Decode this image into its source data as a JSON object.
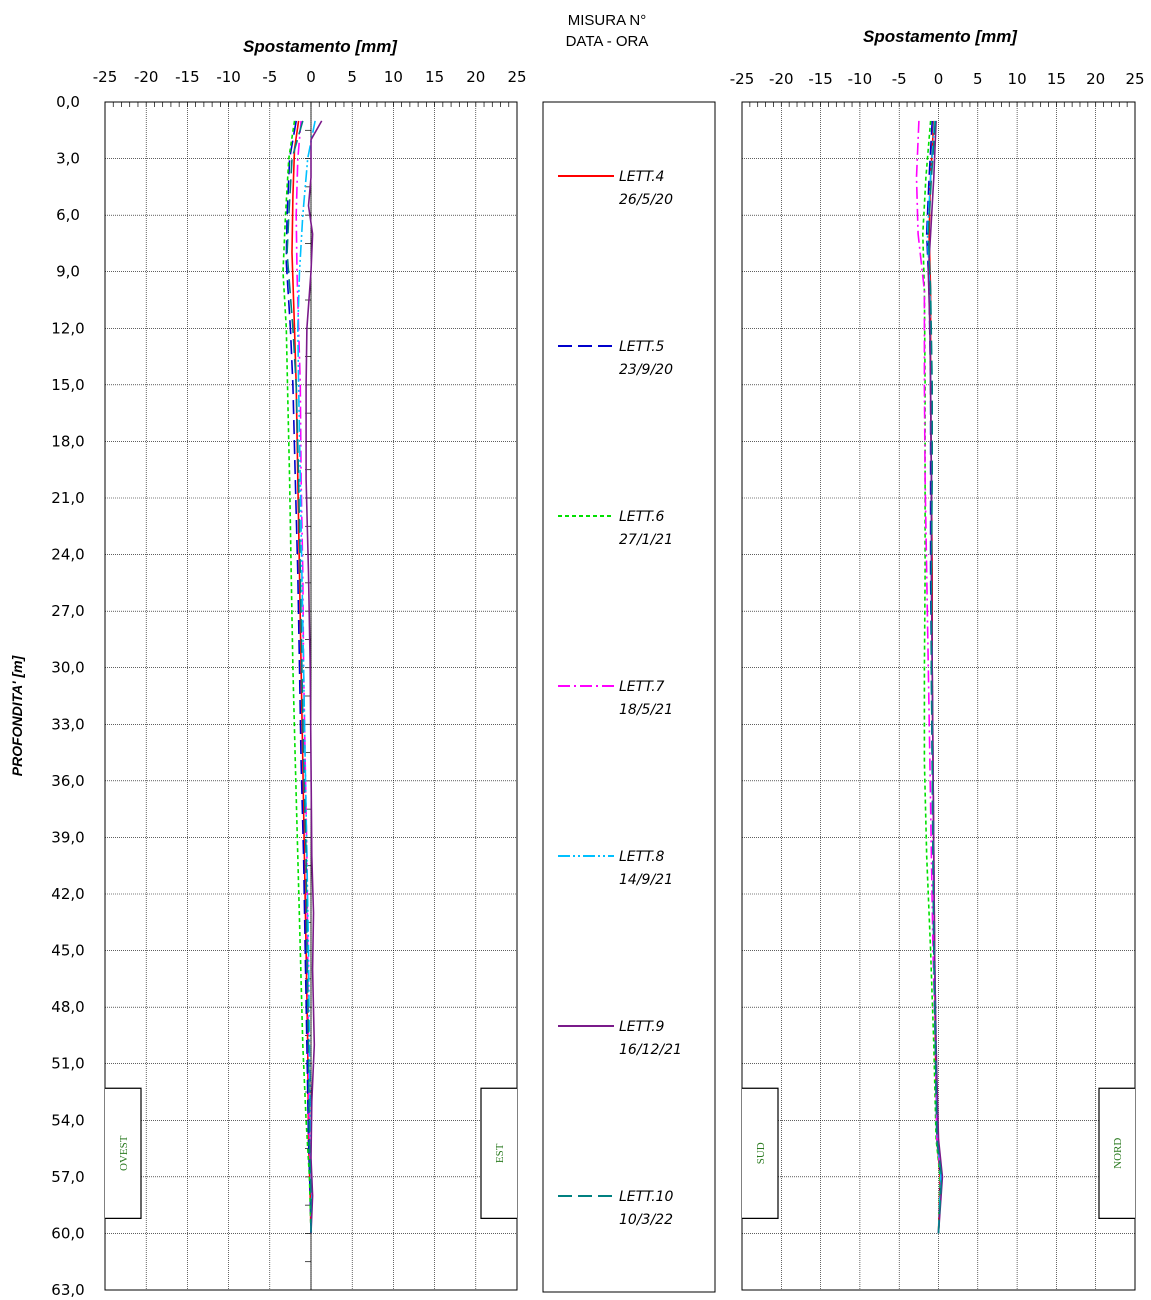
{
  "chart_data": [
    {
      "type": "line",
      "panel": "ovest-est",
      "title": "Spostamento [mm]",
      "xlabel": "Spostamento [mm]",
      "ylabel": "PROFONDITA' [m]",
      "xlim": [
        -25,
        25
      ],
      "ylim": [
        0,
        63
      ],
      "y_inverted": true,
      "x_ticks": [
        "-25",
        "-20",
        "-15",
        "-10",
        "-5",
        "0",
        "5",
        "10",
        "15",
        "20",
        "25"
      ],
      "y_ticks": [
        "0,0",
        "3,0",
        "6,0",
        "9,0",
        "12,0",
        "15,0",
        "18,0",
        "21,0",
        "24,0",
        "27,0",
        "30,0",
        "33,0",
        "36,0",
        "39,0",
        "42,0",
        "45,0",
        "48,0",
        "51,0",
        "54,0",
        "57,0",
        "60,0",
        "63,0"
      ],
      "direction_left": "OVEST",
      "direction_right": "EST",
      "grid": true,
      "series": [
        {
          "name": "LETT.4",
          "color": "#ff0000",
          "dash": "solid",
          "points": [
            [
              -1.5,
              1.0
            ],
            [
              -2.0,
              2.5
            ],
            [
              -2.2,
              5.0
            ],
            [
              -2.3,
              8.0
            ],
            [
              -2.0,
              12.0
            ],
            [
              -1.8,
              15.0
            ],
            [
              -1.6,
              20.0
            ],
            [
              -1.4,
              25.0
            ],
            [
              -1.2,
              30.0
            ],
            [
              -1.0,
              35.0
            ],
            [
              -0.8,
              40.0
            ],
            [
              -0.6,
              45.0
            ],
            [
              -0.4,
              50.0
            ],
            [
              -0.3,
              55.0
            ],
            [
              -0.1,
              58.0
            ],
            [
              0.0,
              60.0
            ]
          ]
        },
        {
          "name": "LETT.5",
          "color": "#0000cc",
          "dash": "long-dash",
          "points": [
            [
              -1.8,
              1.0
            ],
            [
              -2.6,
              3.0
            ],
            [
              -2.9,
              6.0
            ],
            [
              -3.0,
              8.5
            ],
            [
              -2.5,
              12.0
            ],
            [
              -2.2,
              15.0
            ],
            [
              -1.9,
              20.0
            ],
            [
              -1.6,
              25.0
            ],
            [
              -1.4,
              30.0
            ],
            [
              -1.2,
              35.0
            ],
            [
              -0.9,
              40.0
            ],
            [
              -0.7,
              45.0
            ],
            [
              -0.5,
              50.0
            ],
            [
              -0.3,
              55.0
            ],
            [
              -0.1,
              58.0
            ],
            [
              0.0,
              60.0
            ]
          ]
        },
        {
          "name": "LETT.6",
          "color": "#00e000",
          "dash": "short-dash",
          "points": [
            [
              -2.0,
              1.0
            ],
            [
              -2.7,
              3.0
            ],
            [
              -3.1,
              6.0
            ],
            [
              -3.4,
              9.0
            ],
            [
              -3.0,
              12.0
            ],
            [
              -2.8,
              16.0
            ],
            [
              -2.6,
              20.0
            ],
            [
              -2.4,
              25.0
            ],
            [
              -2.2,
              30.0
            ],
            [
              -1.9,
              35.0
            ],
            [
              -1.6,
              40.0
            ],
            [
              -1.3,
              45.0
            ],
            [
              -1.0,
              50.0
            ],
            [
              -0.6,
              54.0
            ],
            [
              -0.2,
              57.0
            ],
            [
              0.0,
              60.0
            ]
          ]
        },
        {
          "name": "LETT.7",
          "color": "#ff00ff",
          "dash": "dash-dot",
          "points": [
            [
              -1.2,
              1.0
            ],
            [
              -1.6,
              3.0
            ],
            [
              -1.8,
              6.0
            ],
            [
              -1.7,
              9.0
            ],
            [
              -1.5,
              12.0
            ],
            [
              -1.3,
              15.0
            ],
            [
              -1.2,
              20.0
            ],
            [
              -1.0,
              25.0
            ],
            [
              -0.9,
              30.0
            ],
            [
              -0.7,
              35.0
            ],
            [
              -0.5,
              40.0
            ],
            [
              -0.4,
              45.0
            ],
            [
              -0.3,
              50.0
            ],
            [
              -0.2,
              55.0
            ],
            [
              0.1,
              58.0
            ],
            [
              0.0,
              60.0
            ]
          ]
        },
        {
          "name": "LETT.8",
          "color": "#00c0ff",
          "dash": "dash-dot-dot",
          "points": [
            [
              0.5,
              1.0
            ],
            [
              -0.4,
              3.0
            ],
            [
              -1.0,
              6.0
            ],
            [
              -1.4,
              9.0
            ],
            [
              -1.6,
              12.0
            ],
            [
              -1.5,
              15.0
            ],
            [
              -1.3,
              20.0
            ],
            [
              -1.1,
              25.0
            ],
            [
              -0.9,
              30.0
            ],
            [
              -0.7,
              35.0
            ],
            [
              -0.5,
              40.0
            ],
            [
              -0.3,
              45.0
            ],
            [
              -0.2,
              50.0
            ],
            [
              -0.1,
              55.0
            ],
            [
              0.1,
              58.0
            ],
            [
              0.0,
              60.0
            ]
          ]
        },
        {
          "name": "LETT.9",
          "color": "#7a1a8a",
          "dash": "solid",
          "points": [
            [
              1.3,
              1.0
            ],
            [
              0.0,
              2.0
            ],
            [
              0.0,
              4.0
            ],
            [
              -0.3,
              5.5
            ],
            [
              0.2,
              7.0
            ],
            [
              0.0,
              9.0
            ],
            [
              -0.5,
              12.0
            ],
            [
              -0.6,
              15.0
            ],
            [
              -0.6,
              20.0
            ],
            [
              -0.3,
              25.0
            ],
            [
              -0.1,
              30.0
            ],
            [
              0.0,
              35.0
            ],
            [
              0.1,
              40.0
            ],
            [
              0.3,
              43.0
            ],
            [
              0.2,
              46.0
            ],
            [
              0.4,
              50.0
            ],
            [
              0.1,
              53.0
            ],
            [
              0.0,
              56.0
            ],
            [
              0.2,
              58.0
            ],
            [
              0.0,
              60.0
            ]
          ]
        },
        {
          "name": "LETT.10",
          "color": "#008080",
          "dash": "long-dash",
          "points": [
            [
              -1.0,
              1.0
            ],
            [
              -2.3,
              3.0
            ],
            [
              -2.7,
              6.0
            ],
            [
              -2.9,
              8.0
            ],
            [
              -2.2,
              12.0
            ],
            [
              -1.8,
              15.0
            ],
            [
              -1.5,
              20.0
            ],
            [
              -1.3,
              25.0
            ],
            [
              -1.1,
              30.0
            ],
            [
              -0.9,
              35.0
            ],
            [
              -0.6,
              40.0
            ],
            [
              -0.5,
              45.0
            ],
            [
              -0.3,
              50.0
            ],
            [
              -0.2,
              55.0
            ],
            [
              0.0,
              58.0
            ],
            [
              0.0,
              60.0
            ]
          ]
        }
      ]
    },
    {
      "type": "line",
      "panel": "sud-nord",
      "title": "Spostamento [mm]",
      "xlabel": "Spostamento [mm]",
      "xlim": [
        -25,
        25
      ],
      "ylim": [
        0,
        63
      ],
      "y_inverted": true,
      "x_ticks": [
        "-25",
        "-20",
        "-15",
        "-10",
        "-5",
        "0",
        "5",
        "10",
        "15",
        "20",
        "25"
      ],
      "direction_left": "SUD",
      "direction_right": "NORD",
      "grid": true,
      "series": [
        {
          "name": "LETT.4",
          "color": "#ff0000",
          "dash": "solid",
          "points": [
            [
              -0.6,
              1.0
            ],
            [
              -1.0,
              4.0
            ],
            [
              -1.2,
              7.0
            ],
            [
              -1.0,
              10.0
            ],
            [
              -1.0,
              15.0
            ],
            [
              -0.9,
              20.0
            ],
            [
              -0.8,
              25.0
            ],
            [
              -0.8,
              30.0
            ],
            [
              -0.7,
              35.0
            ],
            [
              -0.6,
              40.0
            ],
            [
              -0.5,
              45.0
            ],
            [
              -0.4,
              50.0
            ],
            [
              -0.2,
              55.0
            ],
            [
              0.2,
              57.0
            ],
            [
              0.0,
              60.0
            ]
          ]
        },
        {
          "name": "LETT.5",
          "color": "#0000cc",
          "dash": "long-dash",
          "points": [
            [
              -0.8,
              1.0
            ],
            [
              -1.2,
              4.0
            ],
            [
              -1.5,
              7.0
            ],
            [
              -1.2,
              10.0
            ],
            [
              -1.0,
              15.0
            ],
            [
              -1.0,
              20.0
            ],
            [
              -1.0,
              25.0
            ],
            [
              -0.9,
              30.0
            ],
            [
              -0.8,
              35.0
            ],
            [
              -0.7,
              40.0
            ],
            [
              -0.6,
              45.0
            ],
            [
              -0.4,
              50.0
            ],
            [
              -0.2,
              55.0
            ],
            [
              0.3,
              57.0
            ],
            [
              0.0,
              60.0
            ]
          ]
        },
        {
          "name": "LETT.6",
          "color": "#00e000",
          "dash": "short-dash",
          "points": [
            [
              -1.0,
              1.0
            ],
            [
              -1.6,
              4.0
            ],
            [
              -2.0,
              7.0
            ],
            [
              -1.8,
              10.0
            ],
            [
              -1.7,
              15.0
            ],
            [
              -1.7,
              20.0
            ],
            [
              -1.7,
              25.0
            ],
            [
              -1.8,
              30.0
            ],
            [
              -1.8,
              35.0
            ],
            [
              -1.5,
              40.0
            ],
            [
              -1.0,
              45.0
            ],
            [
              -0.6,
              50.0
            ],
            [
              -0.3,
              55.0
            ],
            [
              0.2,
              57.0
            ],
            [
              0.0,
              60.0
            ]
          ]
        },
        {
          "name": "LETT.7",
          "color": "#ff00ff",
          "dash": "dash-dot",
          "points": [
            [
              -2.5,
              1.0
            ],
            [
              -2.8,
              4.0
            ],
            [
              -2.6,
              7.0
            ],
            [
              -1.8,
              10.0
            ],
            [
              -1.8,
              15.0
            ],
            [
              -1.7,
              20.0
            ],
            [
              -1.5,
              25.0
            ],
            [
              -1.3,
              30.0
            ],
            [
              -1.1,
              35.0
            ],
            [
              -0.9,
              40.0
            ],
            [
              -0.7,
              45.0
            ],
            [
              -0.4,
              50.0
            ],
            [
              -0.2,
              55.0
            ],
            [
              0.3,
              57.0
            ],
            [
              0.0,
              60.0
            ]
          ]
        },
        {
          "name": "LETT.8",
          "color": "#00c0ff",
          "dash": "dash-dot-dot",
          "points": [
            [
              -0.5,
              1.0
            ],
            [
              -1.0,
              4.0
            ],
            [
              -1.4,
              7.0
            ],
            [
              -1.1,
              10.0
            ],
            [
              -1.0,
              15.0
            ],
            [
              -0.9,
              20.0
            ],
            [
              -0.9,
              25.0
            ],
            [
              -0.8,
              30.0
            ],
            [
              -0.7,
              35.0
            ],
            [
              -0.6,
              40.0
            ],
            [
              -0.5,
              45.0
            ],
            [
              -0.3,
              50.0
            ],
            [
              -0.1,
              55.0
            ],
            [
              0.3,
              57.0
            ],
            [
              0.0,
              60.0
            ]
          ]
        },
        {
          "name": "LETT.9",
          "color": "#7a1a8a",
          "dash": "solid",
          "points": [
            [
              -0.3,
              1.0
            ],
            [
              -0.6,
              4.0
            ],
            [
              -1.0,
              7.0
            ],
            [
              -1.3,
              9.0
            ],
            [
              -1.1,
              12.0
            ],
            [
              -1.0,
              15.0
            ],
            [
              -0.9,
              20.0
            ],
            [
              -0.9,
              25.0
            ],
            [
              -0.8,
              30.0
            ],
            [
              -0.7,
              35.0
            ],
            [
              -0.6,
              40.0
            ],
            [
              -0.5,
              45.0
            ],
            [
              -0.3,
              50.0
            ],
            [
              0.0,
              55.0
            ],
            [
              0.5,
              57.0
            ],
            [
              0.0,
              60.0
            ]
          ]
        },
        {
          "name": "LETT.10",
          "color": "#008080",
          "dash": "long-dash",
          "points": [
            [
              -0.4,
              1.0
            ],
            [
              -0.9,
              4.0
            ],
            [
              -1.3,
              7.0
            ],
            [
              -1.0,
              10.0
            ],
            [
              -0.8,
              15.0
            ],
            [
              -0.8,
              20.0
            ],
            [
              -0.9,
              25.0
            ],
            [
              -0.9,
              30.0
            ],
            [
              -0.8,
              35.0
            ],
            [
              -0.7,
              40.0
            ],
            [
              -0.6,
              45.0
            ],
            [
              -0.4,
              50.0
            ],
            [
              -0.2,
              55.0
            ],
            [
              0.4,
              57.0
            ],
            [
              0.0,
              60.0
            ]
          ]
        }
      ]
    }
  ],
  "legend": {
    "header_line1": "MISURA N°",
    "header_line2": "DATA - ORA",
    "entries": [
      {
        "name": "LETT.4",
        "date": "26/5/20",
        "color": "#ff0000",
        "dash": "solid"
      },
      {
        "name": "LETT.5",
        "date": "23/9/20",
        "color": "#0000cc",
        "dash": "long-dash"
      },
      {
        "name": "LETT.6",
        "date": "27/1/21",
        "color": "#00e000",
        "dash": "short-dash"
      },
      {
        "name": "LETT.7",
        "date": "18/5/21",
        "color": "#ff00ff",
        "dash": "dash-dot"
      },
      {
        "name": "LETT.8",
        "date": "14/9/21",
        "color": "#00c0ff",
        "dash": "dash-dot-dot"
      },
      {
        "name": "LETT.9",
        "date": "16/12/21",
        "color": "#7a1a8a",
        "dash": "solid"
      },
      {
        "name": "LETT.10",
        "date": "10/3/22",
        "color": "#008080",
        "dash": "long-dash"
      }
    ]
  }
}
